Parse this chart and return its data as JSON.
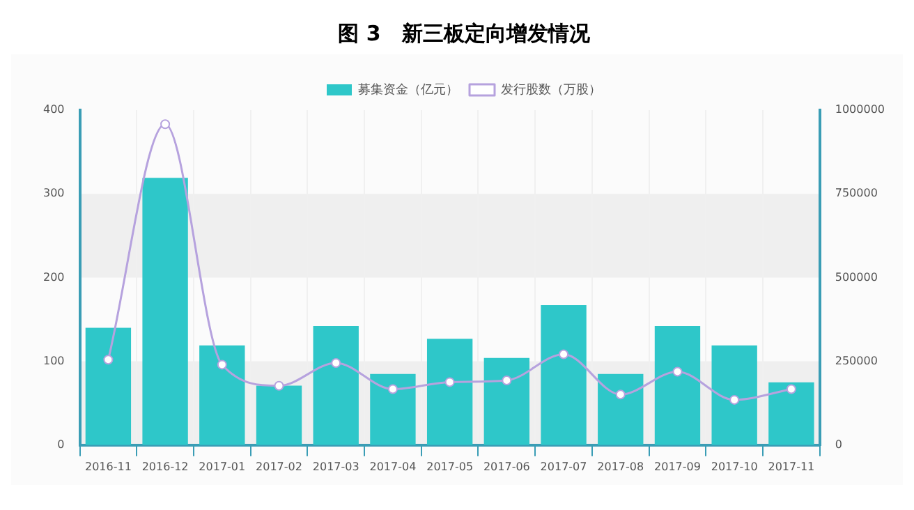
{
  "chart_data": {
    "type": "bar",
    "title": "图 3　新三板定向增发情况",
    "categories": [
      "2016-11",
      "2016-12",
      "2017-01",
      "2017-02",
      "2017-03",
      "2017-04",
      "2017-05",
      "2017-06",
      "2017-07",
      "2017-08",
      "2017-09",
      "2017-10",
      "2017-11"
    ],
    "series": [
      {
        "name": "募集资金（亿元）",
        "color": "#2ec7c9",
        "values": [
          140,
          319,
          119,
          71,
          142,
          85,
          127,
          104,
          167,
          85,
          142,
          119,
          75
        ]
      },
      {
        "name": "发行股数（万股）",
        "type": "line",
        "axis": "y2",
        "color": "#b6a2de",
        "values": [
          255000,
          958000,
          240000,
          177000,
          245000,
          167000,
          188000,
          193000,
          271000,
          151000,
          219000,
          135000,
          167000
        ]
      }
    ],
    "ylim": [
      0,
      400
    ],
    "yticks": [
      0,
      100,
      200,
      300,
      400
    ],
    "y2lim": [
      0,
      1000000
    ],
    "y2ticks": [
      0,
      250000,
      500000,
      750000,
      1000000
    ],
    "grid": true,
    "legend": "top",
    "marker": "circle",
    "line_style": "solid"
  }
}
